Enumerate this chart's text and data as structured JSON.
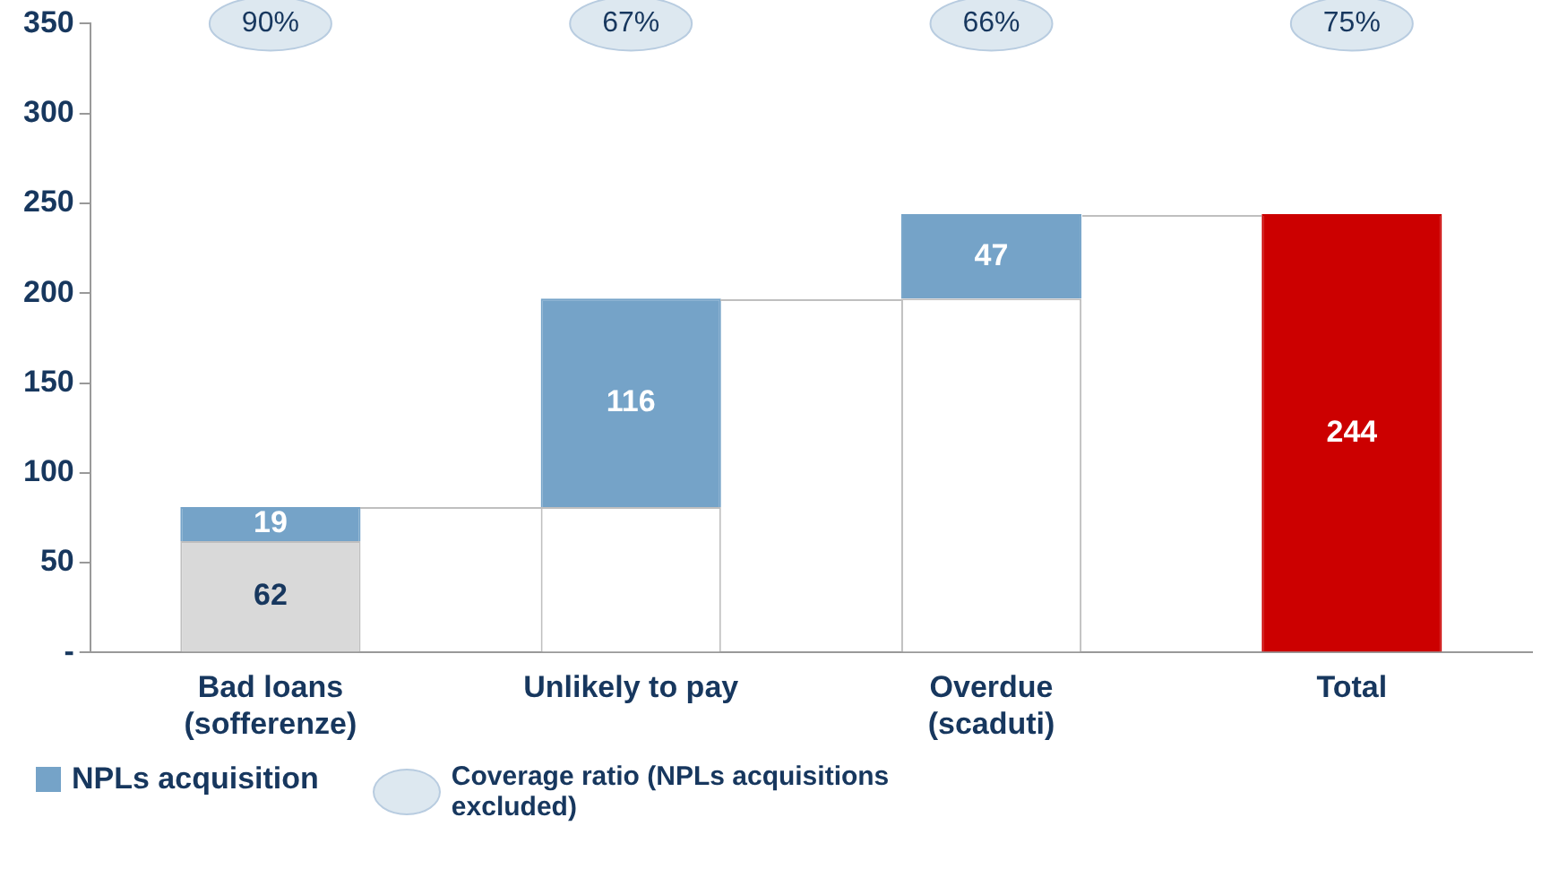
{
  "chart_data": {
    "type": "bar",
    "stacked": true,
    "categories": [
      "Bad loans\n(sofferenze)",
      "Unlikely to pay",
      "Overdue\n(scaduti)",
      "Total"
    ],
    "series": [
      {
        "colors": [
          "#d9d9d9",
          "#ffffff",
          "#ffffff",
          null
        ],
        "values": [
          62,
          81,
          197,
          null
        ],
        "value_labels": [
          "62",
          null,
          null,
          null
        ]
      },
      {
        "name": "NPLs acquisition",
        "color": "#75a3c8",
        "values": [
          19,
          116,
          47,
          null
        ],
        "value_labels": [
          "19",
          "116",
          "47",
          null
        ]
      },
      {
        "color": "#cc0000",
        "values": [
          null,
          null,
          null,
          244
        ],
        "value_labels": [
          null,
          null,
          null,
          "244"
        ]
      }
    ],
    "ylim": [
      0,
      350
    ],
    "yticks": [
      {
        "value": 0,
        "label": "-"
      },
      50,
      100,
      150,
      200,
      250,
      300,
      350
    ],
    "grid": false,
    "legend": "bottom",
    "annotations": [
      "90%",
      "67%",
      "66%",
      "75%",
      "Coverage ratio (NPLs acquisitions excluded)"
    ]
  }
}
